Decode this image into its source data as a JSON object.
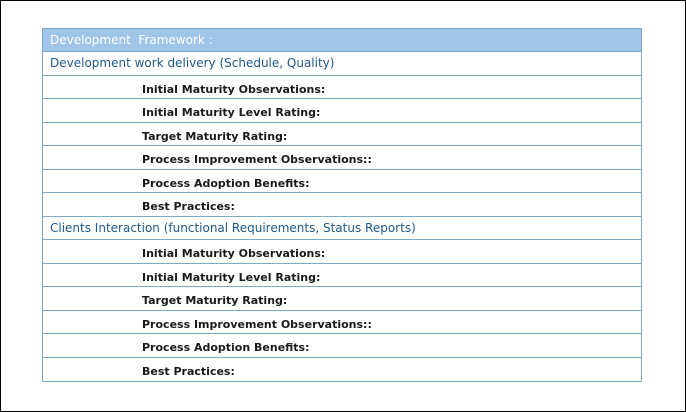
{
  "table": {
    "title": "Development  Framework :",
    "sections": [
      {
        "label": "Development work delivery (Schedule, Quality)",
        "items": [
          "Initial Maturity Observations:",
          "Initial Maturity Level Rating:",
          "Target Maturity Rating:",
          "Process Improvement Observations::",
          "Process Adoption Benefits:",
          "Best Practices:"
        ]
      },
      {
        "label": "Clients Interaction (functional Requirements, Status Reports)",
        "items": [
          "Initial Maturity Observations:",
          "Initial Maturity Level Rating:",
          "Target Maturity Rating:",
          "Process Improvement Observations::",
          "Process Adoption Benefits:",
          "Best Practices:"
        ]
      }
    ]
  },
  "colors": {
    "header_bg": "#9fc5e8",
    "border": "#7fa9c9",
    "section_text": "#1f5a8a"
  }
}
